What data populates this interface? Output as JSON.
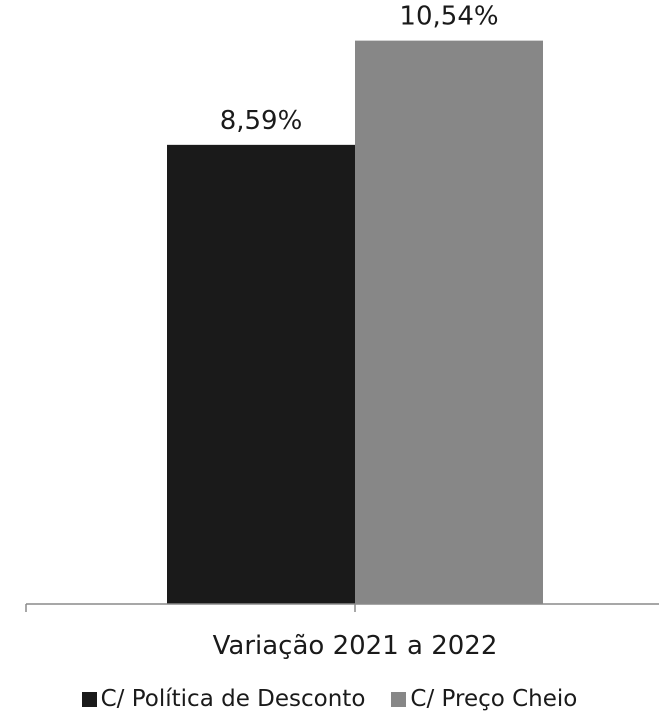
{
  "chart_data": {
    "type": "bar",
    "categories": [
      "Variação 2021 a 2022"
    ],
    "series": [
      {
        "name": "C/ Política de Desconto",
        "values": [
          8.59
        ],
        "label": "8,59%",
        "color": "#1a1a1a"
      },
      {
        "name": "C/ Preço Cheio",
        "values": [
          10.54
        ],
        "label": "10,54%",
        "color": "#878787"
      }
    ],
    "ylim": [
      0,
      11.3
    ],
    "grid": false,
    "legend_position": "bottom"
  }
}
